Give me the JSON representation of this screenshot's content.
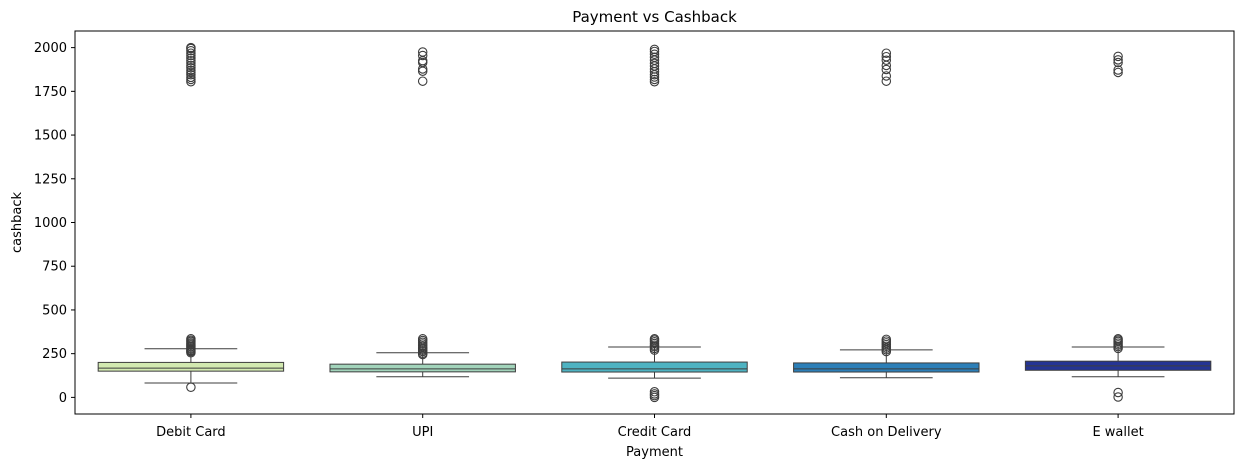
{
  "chart_data": {
    "type": "box",
    "title": "Payment vs Cashback",
    "xlabel": "Payment",
    "ylabel": "cashback",
    "ylim": [
      -95,
      2095
    ],
    "yticks": [
      0,
      250,
      500,
      750,
      1000,
      1250,
      1500,
      1750,
      2000
    ],
    "grid": false,
    "legend": "none",
    "categories": [
      "Debit Card",
      "UPI",
      "Credit Card",
      "Cash on Delivery",
      "E wallet"
    ],
    "boxes": [
      {
        "category": "Debit Card",
        "color": "#d2e9b0",
        "whisker_low": 82,
        "q1": 150,
        "median": 167,
        "q3": 200,
        "whisker_high": 278,
        "outliers": [
          58,
          255,
          262,
          268,
          275,
          282,
          290,
          298,
          305,
          312,
          320,
          327,
          335,
          1805,
          1818,
          1830,
          1845,
          1858,
          1870,
          1885,
          1898,
          1912,
          1925,
          1940,
          1955,
          1968,
          1982,
          1995,
          2000
        ]
      },
      {
        "category": "UPI",
        "color": "#a2d4bb",
        "whisker_low": 118,
        "q1": 146,
        "median": 163,
        "q3": 190,
        "whisker_high": 255,
        "outliers": [
          245,
          252,
          262,
          270,
          278,
          286,
          295,
          305,
          315,
          325,
          335,
          1808,
          1865,
          1878,
          1915,
          1925,
          1955,
          1975
        ]
      },
      {
        "category": "Credit Card",
        "color": "#4eb3c2",
        "whisker_low": 110,
        "q1": 145,
        "median": 163,
        "q3": 202,
        "whisker_high": 288,
        "outliers": [
          0,
          10,
          20,
          32,
          270,
          280,
          290,
          298,
          308,
          318,
          328,
          335,
          1805,
          1818,
          1832,
          1845,
          1862,
          1878,
          1895,
          1910,
          1928,
          1945,
          1962,
          1978,
          1990
        ]
      },
      {
        "category": "Cash on Delivery",
        "color": "#2c7fb8",
        "whisker_low": 112,
        "q1": 145,
        "median": 163,
        "q3": 197,
        "whisker_high": 272,
        "outliers": [
          262,
          272,
          282,
          292,
          302,
          312,
          322,
          332,
          1808,
          1838,
          1875,
          1898,
          1928,
          1948,
          1968
        ]
      },
      {
        "category": "E wallet",
        "color": "#253494",
        "whisker_low": 118,
        "q1": 155,
        "median": 180,
        "q3": 207,
        "whisker_high": 288,
        "outliers": [
          2,
          28,
          280,
          290,
          300,
          310,
          320,
          328,
          335,
          1858,
          1872,
          1915,
          1930,
          1950
        ]
      }
    ]
  }
}
